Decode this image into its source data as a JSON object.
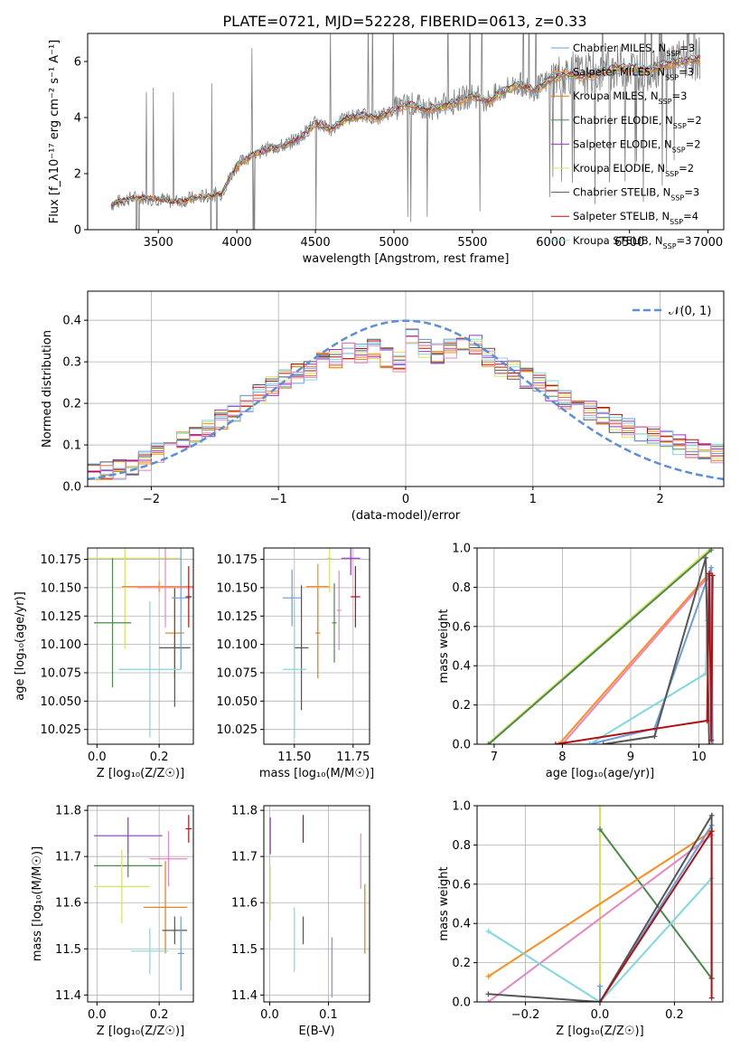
{
  "figure_title": "PLATE=0721, MJD=52228, FIBERID=0613, z=0.33",
  "colors": {
    "Chabrier MILES": "#6b9bd8",
    "Salpeter MILES": "#ff8c1a",
    "Kroupa MILES": "#e07a10",
    "Chabrier ELODIE": "#4a8a4a",
    "Salpeter ELODIE": "#9932cc",
    "Kroupa ELODIE": "#d8e060",
    "Chabrier STELIB": "#555555",
    "Salpeter STELIB": "#b01010",
    "Kroupa STELIB": "#7fd8e0",
    "normal_curve": "#5b8fd8",
    "pink": "#e884c0"
  },
  "chart_data": [
    {
      "id": "spectrum",
      "type": "line",
      "xlabel": "wavelength [Angstrom, rest frame]",
      "ylabel": "Flux [f_λ10⁻¹⁷ erg cm⁻² s⁻¹ A⁻¹]",
      "xlim": [
        3050,
        7100
      ],
      "ylim": [
        0,
        7
      ],
      "xticks": [
        "3500",
        "4000",
        "4500",
        "5000",
        "5500",
        "6000",
        "6500",
        "7000"
      ],
      "yticks": [
        "0",
        "2",
        "4",
        "6"
      ],
      "legend_position": "top-right",
      "legend": [
        {
          "label": "Chabrier MILES, N",
          "sub": "SSP",
          "suffix": "=3"
        },
        {
          "label": "Salpeter MILES, N",
          "sub": "SSP",
          "suffix": "=3"
        },
        {
          "label": "Kroupa MILES, N",
          "sub": "SSP",
          "suffix": "=3"
        },
        {
          "label": "Chabrier ELODIE, N",
          "sub": "SSP",
          "suffix": "=2"
        },
        {
          "label": "Salpeter ELODIE, N",
          "sub": "SSP",
          "suffix": "=2"
        },
        {
          "label": "Kroupa ELODIE, N",
          "sub": "SSP",
          "suffix": "=2"
        },
        {
          "label": "Chabrier STELIB, N",
          "sub": "SSP",
          "suffix": "=3"
        },
        {
          "label": "Salpeter STELIB, N",
          "sub": "SSP",
          "suffix": "=4"
        },
        {
          "label": "Kroupa STELIB, N",
          "sub": "SSP",
          "suffix": "=3"
        }
      ],
      "continuum_x": [
        3200,
        3300,
        3400,
        3500,
        3600,
        3700,
        3800,
        3900,
        4000,
        4100,
        4200,
        4300,
        4400,
        4500,
        4600,
        4700,
        4800,
        4900,
        5000,
        5100,
        5200,
        5300,
        5400,
        5500,
        5600,
        5700,
        5800,
        5900,
        6000,
        6100,
        6200,
        6300,
        6400,
        6500,
        6600,
        6700,
        6800,
        6900
      ],
      "continuum_y": [
        0.9,
        1.1,
        1.15,
        1.1,
        1.0,
        1.1,
        1.2,
        1.3,
        2.3,
        2.7,
        2.9,
        3.0,
        3.3,
        3.8,
        3.6,
        4.0,
        4.1,
        4.0,
        4.3,
        4.5,
        4.3,
        4.4,
        4.6,
        4.8,
        4.6,
        5.0,
        5.2,
        5.0,
        5.4,
        5.6,
        5.5,
        5.6,
        5.8,
        5.8,
        5.7,
        5.9,
        6.0,
        6.1
      ]
    },
    {
      "id": "residuals",
      "type": "histogram",
      "xlabel": "(data-model)/error",
      "ylabel": "Normed distribution",
      "xlim": [
        -2.5,
        2.5
      ],
      "ylim": [
        0,
        0.47
      ],
      "xticks": [
        "−2",
        "−1",
        "0",
        "1",
        "2"
      ],
      "yticks": [
        "0.0",
        "0.1",
        "0.2",
        "0.3",
        "0.4"
      ],
      "legend_label": "𝒩(0, 1)",
      "legend_position": "top-right",
      "bin_centers": [
        -2.45,
        -2.35,
        -2.25,
        -2.15,
        -2.05,
        -1.95,
        -1.85,
        -1.75,
        -1.65,
        -1.55,
        -1.45,
        -1.35,
        -1.25,
        -1.15,
        -1.05,
        -0.95,
        -0.85,
        -0.75,
        -0.65,
        -0.55,
        -0.45,
        -0.35,
        -0.25,
        -0.15,
        -0.05,
        0.05,
        0.15,
        0.25,
        0.35,
        0.45,
        0.55,
        0.65,
        0.75,
        0.85,
        0.95,
        1.05,
        1.15,
        1.25,
        1.35,
        1.45,
        1.55,
        1.65,
        1.75,
        1.85,
        1.95,
        2.05,
        2.15,
        2.25,
        2.35,
        2.45
      ],
      "histogram_shape": [
        0.03,
        0.035,
        0.04,
        0.05,
        0.06,
        0.08,
        0.09,
        0.11,
        0.13,
        0.14,
        0.16,
        0.18,
        0.2,
        0.22,
        0.24,
        0.26,
        0.27,
        0.28,
        0.3,
        0.31,
        0.33,
        0.32,
        0.33,
        0.31,
        0.3,
        0.36,
        0.33,
        0.32,
        0.33,
        0.34,
        0.34,
        0.31,
        0.29,
        0.28,
        0.26,
        0.25,
        0.23,
        0.21,
        0.2,
        0.18,
        0.17,
        0.15,
        0.14,
        0.13,
        0.12,
        0.11,
        0.1,
        0.09,
        0.09,
        0.08
      ],
      "normal_curve": {
        "mean": 0,
        "sigma": 1
      }
    },
    {
      "id": "age_vs_Z",
      "type": "errorbar",
      "xlabel": "Z [log₁₀(Z/Z☉)]",
      "ylabel": "age  [log₁₀(age/yr)]",
      "xlim": [
        -0.03,
        0.31
      ],
      "ylim": [
        10.012,
        10.185
      ],
      "xticks": [
        {
          "v": 0.0,
          "t": "0.0"
        },
        {
          "v": 0.2,
          "t": "0.2"
        }
      ],
      "yticks": [
        {
          "v": 10.025,
          "t": "10.025"
        },
        {
          "v": 10.05,
          "t": "10.050"
        },
        {
          "v": 10.075,
          "t": "10.075"
        },
        {
          "v": 10.1,
          "t": "10.100"
        },
        {
          "v": 10.125,
          "t": "10.125"
        },
        {
          "v": 10.15,
          "t": "10.150"
        },
        {
          "v": 10.175,
          "t": "10.175"
        }
      ],
      "points": [
        {
          "s": "Kroupa ELODIE",
          "x": 0.09,
          "xerr": 0.18,
          "y": 10.176,
          "yerr": 0.08
        },
        {
          "s": "Chabrier ELODIE",
          "x": 0.05,
          "xerr": 0.06,
          "y": 10.119,
          "yerr": 0.057
        },
        {
          "s": "Salpeter MILES",
          "x": 0.2,
          "xerr": 0.12,
          "y": 10.151,
          "yerr": 0.005
        },
        {
          "s": "pink",
          "x": 0.22,
          "xerr": 0.09,
          "y": 10.15,
          "yerr": 0.035
        },
        {
          "s": "Kroupa MILES",
          "x": 0.25,
          "xerr": 0.03,
          "y": 10.11,
          "yerr": 0.04
        },
        {
          "s": "Chabrier STELIB",
          "x": 0.25,
          "xerr": 0.05,
          "y": 10.097,
          "yerr": 0.052
        },
        {
          "s": "Kroupa STELIB",
          "x": 0.17,
          "xerr": 0.1,
          "y": 10.078,
          "yerr": 0.06
        },
        {
          "s": "Chabrier MILES",
          "x": 0.27,
          "xerr": 0.03,
          "y": 10.141,
          "yerr": 0.063
        },
        {
          "s": "Salpeter STELIB",
          "x": 0.295,
          "xerr": 0.01,
          "y": 10.142,
          "yerr": 0.027
        }
      ]
    },
    {
      "id": "age_vs_mass",
      "type": "errorbar",
      "xlabel": "mass [log₁₀(M/M☉)]",
      "ylabel": "",
      "xlim": [
        11.37,
        11.82
      ],
      "ylim": [
        10.012,
        10.185
      ],
      "xticks": [
        {
          "v": 11.5,
          "t": "11.50"
        },
        {
          "v": 11.75,
          "t": "11.75"
        }
      ],
      "yticks": [
        {
          "v": 10.025,
          "t": "10.025"
        },
        {
          "v": 10.05,
          "t": "10.050"
        },
        {
          "v": 10.075,
          "t": "10.075"
        },
        {
          "v": 10.1,
          "t": "10.100"
        },
        {
          "v": 10.125,
          "t": "10.125"
        },
        {
          "v": 10.15,
          "t": "10.150"
        },
        {
          "v": 10.175,
          "t": "10.175"
        }
      ],
      "points": [
        {
          "s": "Chabrier MILES",
          "x": 11.49,
          "xerr": 0.04,
          "y": 10.141,
          "yerr": 0.025
        },
        {
          "s": "Chabrier STELIB",
          "x": 11.53,
          "xerr": 0.03,
          "y": 10.097,
          "yerr": 0.055
        },
        {
          "s": "Kroupa STELIB",
          "x": 11.5,
          "xerr": 0.05,
          "y": 10.078,
          "yerr": 0.06
        },
        {
          "s": "Kroupa MILES",
          "x": 11.6,
          "xerr": 0.01,
          "y": 10.11,
          "yerr": 0.04
        },
        {
          "s": "Salpeter MILES",
          "x": 11.6,
          "xerr": 0.05,
          "y": 10.151,
          "yerr": 0.02
        },
        {
          "s": "Kroupa ELODIE",
          "x": 11.65,
          "xerr": 0.01,
          "y": 10.176,
          "yerr": 0.03
        },
        {
          "s": "Chabrier ELODIE",
          "x": 11.67,
          "xerr": 0.01,
          "y": 10.119,
          "yerr": 0.035
        },
        {
          "s": "pink",
          "x": 11.69,
          "xerr": 0.01,
          "y": 10.13,
          "yerr": 0.035
        },
        {
          "s": "Salpeter ELODIE",
          "x": 11.74,
          "xerr": 0.04,
          "y": 10.176,
          "yerr": 0.015
        },
        {
          "s": "Salpeter STELIB",
          "x": 11.76,
          "xerr": 0.02,
          "y": 10.142,
          "yerr": 0.027
        }
      ]
    },
    {
      "id": "weight_vs_age",
      "type": "line",
      "xlabel": "age  [log₁₀(age/yr)]",
      "ylabel": "mass weight",
      "xlim": [
        6.75,
        10.35
      ],
      "ylim": [
        0,
        1
      ],
      "xticks": [
        {
          "v": 7,
          "t": "7"
        },
        {
          "v": 8,
          "t": "8"
        },
        {
          "v": 9,
          "t": "9"
        },
        {
          "v": 10,
          "t": "10"
        }
      ],
      "yticks": [
        {
          "v": 0,
          "t": "0.0"
        },
        {
          "v": 0.2,
          "t": "0.2"
        },
        {
          "v": 0.4,
          "t": "0.4"
        },
        {
          "v": 0.6,
          "t": "0.6"
        },
        {
          "v": 0.8,
          "t": "0.8"
        },
        {
          "v": 1.0,
          "t": "1.0"
        }
      ],
      "lines": [
        {
          "s": "Kroupa ELODIE",
          "x": [
            6.9,
            10.18
          ],
          "y": [
            0.0,
            1.0
          ]
        },
        {
          "s": "Chabrier ELODIE",
          "x": [
            6.92,
            10.18
          ],
          "y": [
            0.0,
            0.99
          ]
        },
        {
          "s": "Salpeter MILES",
          "x": [
            7.95,
            10.15
          ],
          "y": [
            0.0,
            0.87
          ]
        },
        {
          "s": "pink",
          "x": [
            8.0,
            10.13
          ],
          "y": [
            0.0,
            0.85
          ]
        },
        {
          "s": "Chabrier MILES",
          "x": [
            8.4,
            9.35,
            10.18,
            10.2
          ],
          "y": [
            0.0,
            0.08,
            0.9,
            0.0
          ]
        },
        {
          "s": "Kroupa STELIB",
          "x": [
            8.4,
            10.1,
            10.12,
            10.15
          ],
          "y": [
            0.0,
            0.36,
            0.63,
            0.85
          ]
        },
        {
          "s": "Chabrier STELIB",
          "x": [
            8.6,
            9.35,
            10.1,
            10.15
          ],
          "y": [
            0.0,
            0.04,
            0.95,
            0.0
          ]
        },
        {
          "s": "Salpeter STELIB",
          "x": [
            7.9,
            10.12,
            10.15,
            10.18,
            10.2
          ],
          "y": [
            0.0,
            0.12,
            0.87,
            0.02,
            0.86
          ]
        }
      ]
    },
    {
      "id": "mass_vs_Z",
      "type": "errorbar",
      "xlabel": "Z [log₁₀(Z/Z☉)]",
      "ylabel": "mass [log₁₀(M/M☉)]",
      "xlim": [
        -0.03,
        0.31
      ],
      "ylim": [
        11.385,
        11.81
      ],
      "xticks": [
        {
          "v": 0.0,
          "t": "0.0"
        },
        {
          "v": 0.2,
          "t": "0.2"
        }
      ],
      "yticks": [
        {
          "v": 11.4,
          "t": "11.4"
        },
        {
          "v": 11.5,
          "t": "11.5"
        },
        {
          "v": 11.6,
          "t": "11.6"
        },
        {
          "v": 11.7,
          "t": "11.7"
        },
        {
          "v": 11.8,
          "t": "11.8"
        }
      ],
      "points": [
        {
          "s": "Salpeter ELODIE",
          "x": 0.1,
          "xerr": 0.11,
          "y": 11.745,
          "yerr": 0.04
        },
        {
          "s": "Chabrier ELODIE",
          "x": 0.1,
          "xerr": 0.11,
          "y": 11.68,
          "yerr": 0.025
        },
        {
          "s": "Kroupa ELODIE",
          "x": 0.08,
          "xerr": 0.09,
          "y": 11.635,
          "yerr": 0.08
        },
        {
          "s": "pink",
          "x": 0.23,
          "xerr": 0.06,
          "y": 11.695,
          "yerr": 0.06
        },
        {
          "s": "Kroupa MILES",
          "x": 0.22,
          "xerr": 0.07,
          "y": 11.59,
          "yerr": 0.1
        },
        {
          "s": "Chabrier STELIB",
          "x": 0.25,
          "xerr": 0.04,
          "y": 11.54,
          "yerr": 0.03
        },
        {
          "s": "Kroupa STELIB",
          "x": 0.17,
          "xerr": 0.06,
          "y": 11.495,
          "yerr": 0.05
        },
        {
          "s": "Chabrier MILES",
          "x": 0.27,
          "xerr": 0.01,
          "y": 11.49,
          "yerr": 0.08
        },
        {
          "s": "Salpeter STELIB",
          "x": 0.295,
          "xerr": 0.01,
          "y": 11.76,
          "yerr": 0.03
        }
      ]
    },
    {
      "id": "mass_vs_EBV",
      "type": "errorbar",
      "xlabel": "E(B-V)",
      "ylabel": "",
      "xlim": [
        -0.01,
        0.17
      ],
      "ylim": [
        11.385,
        11.81
      ],
      "xticks": [
        {
          "v": 0.0,
          "t": "0.0"
        },
        {
          "v": 0.1,
          "t": "0.1"
        }
      ],
      "yticks": [
        {
          "v": 11.4,
          "t": "11.4"
        },
        {
          "v": 11.5,
          "t": "11.5"
        },
        {
          "v": 11.6,
          "t": "11.6"
        },
        {
          "v": 11.7,
          "t": "11.7"
        },
        {
          "v": 11.8,
          "t": "11.8"
        }
      ],
      "points": [
        {
          "s": "Salpeter ELODIE",
          "x": 0.001,
          "xerr": 0,
          "y": 11.745,
          "yerr": 0.04
        },
        {
          "s": "Kroupa ELODIE",
          "x": 0.001,
          "xerr": 0,
          "y": 11.62,
          "yerr": 0.06
        },
        {
          "s": "Kroupa STELIB",
          "x": 0.042,
          "xerr": 0,
          "y": 11.52,
          "yerr": 0.07
        },
        {
          "s": "Chabrier STELIB",
          "x": 0.057,
          "xerr": 0,
          "y": 11.54,
          "yerr": 0.03
        },
        {
          "s": "Salpeter STELIB",
          "x": 0.057,
          "xerr": 0,
          "y": 11.76,
          "yerr": 0.03
        },
        {
          "s": "Chabrier MILES",
          "x": 0.106,
          "xerr": 0,
          "y": 11.46,
          "yerr": 0.065
        },
        {
          "s": "pink",
          "x": 0.155,
          "xerr": 0,
          "y": 11.69,
          "yerr": 0.06
        },
        {
          "s": "Kroupa MILES",
          "x": 0.162,
          "xerr": 0,
          "y": 11.565,
          "yerr": 0.075
        }
      ]
    },
    {
      "id": "weight_vs_Z",
      "type": "line",
      "xlabel": "Z [log₁₀(Z/Z☉)]",
      "ylabel": "mass weight",
      "xlim": [
        -0.33,
        0.33
      ],
      "ylim": [
        0,
        1
      ],
      "xticks": [
        {
          "v": -0.2,
          "t": "−0.2"
        },
        {
          "v": 0.0,
          "t": "0.0"
        },
        {
          "v": 0.2,
          "t": "0.2"
        }
      ],
      "yticks": [
        {
          "v": 0,
          "t": "0.0"
        },
        {
          "v": 0.2,
          "t": "0.2"
        },
        {
          "v": 0.4,
          "t": "0.4"
        },
        {
          "v": 0.6,
          "t": "0.6"
        },
        {
          "v": 0.8,
          "t": "0.8"
        },
        {
          "v": 1.0,
          "t": "1.0"
        }
      ],
      "lines": [
        {
          "s": "Kroupa ELODIE",
          "x": [
            0.0,
            0.0
          ],
          "y": [
            0.0,
            1.0
          ]
        },
        {
          "s": "Chabrier ELODIE",
          "x": [
            0.0,
            0.3
          ],
          "y": [
            0.88,
            0.12
          ]
        },
        {
          "s": "Salpeter MILES",
          "x": [
            -0.3,
            0.3
          ],
          "y": [
            0.13,
            0.87
          ]
        },
        {
          "s": "pink",
          "x": [
            -0.3,
            0.3
          ],
          "y": [
            0.0,
            0.85
          ]
        },
        {
          "s": "Chabrier MILES",
          "x": [
            0.0,
            0.0,
            0.3
          ],
          "y": [
            0.08,
            0.0,
            0.9
          ]
        },
        {
          "s": "Kroupa STELIB",
          "x": [
            -0.3,
            0.0,
            0.3
          ],
          "y": [
            0.36,
            0.0,
            0.63
          ]
        },
        {
          "s": "Chabrier STELIB",
          "x": [
            -0.3,
            0.0,
            0.3,
            0.3
          ],
          "y": [
            0.04,
            0.0,
            0.95,
            0.12
          ]
        },
        {
          "s": "Salpeter STELIB",
          "x": [
            0.0,
            0.3,
            0.3
          ],
          "y": [
            0.0,
            0.87,
            0.02
          ]
        }
      ]
    }
  ]
}
